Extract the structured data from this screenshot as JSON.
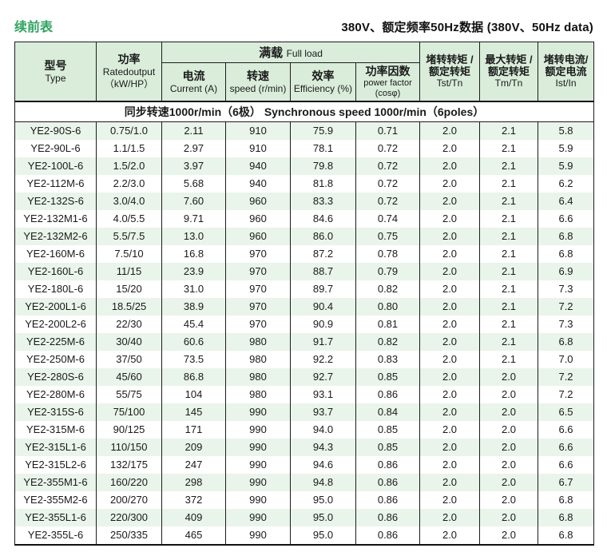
{
  "page": {
    "continued_label": "续前表",
    "title": "380V、额定频率50Hz数据 (380V、50Hz data)"
  },
  "colors": {
    "accent_green_text": "#2ea35f",
    "header_bg": "#d9edda",
    "stripe_bg": "#e9f4ea",
    "border": "#1c1c1c"
  },
  "table": {
    "header": {
      "type_zh": "型号",
      "type_en": "Type",
      "power_zh": "功率",
      "power_en": "Ratedoutput",
      "power_unit": "（kW/HP）",
      "full_load_zh": "满载",
      "full_load_en": "Full load",
      "current_zh": "电流",
      "current_en": "Current (A)",
      "speed_zh": "转速",
      "speed_en": "speed (r/min)",
      "efficiency_zh": "效率",
      "efficiency_en": "Efficiency (%)",
      "power_factor_zh": "功率因数",
      "power_factor_en": "power factor",
      "power_factor_unit": "(cosφ)",
      "tst_zh1": "堵转转矩 /",
      "tst_zh2": "额定转矩",
      "tst_en": "Tst/Tn",
      "tm_zh1": "最大转矩 /",
      "tm_zh2": "额定转矩",
      "tm_en": "Tm/Tn",
      "ist_zh1": "堵转电流/",
      "ist_zh2": "额定电流",
      "ist_en": "Ist/In"
    },
    "group_label": "同步转速1000r/min（6极）   Synchronous speed 1000r/min（6poles）",
    "columns": [
      "model",
      "power",
      "current",
      "speed",
      "efficiency",
      "power-factor",
      "tst-tn",
      "tm-tn",
      "ist-in"
    ],
    "rows": [
      [
        "YE2-90S-6",
        "0.75/1.0",
        "2.11",
        "910",
        "75.9",
        "0.71",
        "2.0",
        "2.1",
        "5.8"
      ],
      [
        "YE2-90L-6",
        "1.1/1.5",
        "2.97",
        "910",
        "78.1",
        "0.72",
        "2.0",
        "2.1",
        "5.9"
      ],
      [
        "YE2-100L-6",
        "1.5/2.0",
        "3.97",
        "940",
        "79.8",
        "0.72",
        "2.0",
        "2.1",
        "5.9"
      ],
      [
        "YE2-112M-6",
        "2.2/3.0",
        "5.68",
        "940",
        "81.8",
        "0.72",
        "2.0",
        "2.1",
        "6.2"
      ],
      [
        "YE2-132S-6",
        "3.0/4.0",
        "7.60",
        "960",
        "83.3",
        "0.72",
        "2.0",
        "2.1",
        "6.4"
      ],
      [
        "YE2-132M1-6",
        "4.0/5.5",
        "9.71",
        "960",
        "84.6",
        "0.74",
        "2.0",
        "2.1",
        "6.6"
      ],
      [
        "YE2-132M2-6",
        "5.5/7.5",
        "13.0",
        "960",
        "86.0",
        "0.75",
        "2.0",
        "2.1",
        "6.8"
      ],
      [
        "YE2-160M-6",
        "7.5/10",
        "16.8",
        "970",
        "87.2",
        "0.78",
        "2.0",
        "2.1",
        "6.8"
      ],
      [
        "YE2-160L-6",
        "11/15",
        "23.9",
        "970",
        "88.7",
        "0.79",
        "2.0",
        "2.1",
        "6.9"
      ],
      [
        "YE2-180L-6",
        "15/20",
        "31.0",
        "970",
        "89.7",
        "0.82",
        "2.0",
        "2.1",
        "7.3"
      ],
      [
        "YE2-200L1-6",
        "18.5/25",
        "38.9",
        "970",
        "90.4",
        "0.80",
        "2.0",
        "2.1",
        "7.2"
      ],
      [
        "YE2-200L2-6",
        "22/30",
        "45.4",
        "970",
        "90.9",
        "0.81",
        "2.0",
        "2.1",
        "7.3"
      ],
      [
        "YE2-225M-6",
        "30/40",
        "60.6",
        "980",
        "91.7",
        "0.82",
        "2.0",
        "2.1",
        "6.8"
      ],
      [
        "YE2-250M-6",
        "37/50",
        "73.5",
        "980",
        "92.2",
        "0.83",
        "2.0",
        "2.1",
        "7.0"
      ],
      [
        "YE2-280S-6",
        "45/60",
        "86.8",
        "980",
        "92.7",
        "0.85",
        "2.0",
        "2.0",
        "7.2"
      ],
      [
        "YE2-280M-6",
        "55/75",
        "104",
        "980",
        "93.1",
        "0.86",
        "2.0",
        "2.0",
        "7.2"
      ],
      [
        "YE2-315S-6",
        "75/100",
        "145",
        "990",
        "93.7",
        "0.84",
        "2.0",
        "2.0",
        "6.5"
      ],
      [
        "YE2-315M-6",
        "90/125",
        "171",
        "990",
        "94.0",
        "0.85",
        "2.0",
        "2.0",
        "6.6"
      ],
      [
        "YE2-315L1-6",
        "110/150",
        "209",
        "990",
        "94.3",
        "0.85",
        "2.0",
        "2.0",
        "6.6"
      ],
      [
        "YE2-315L2-6",
        "132/175",
        "247",
        "990",
        "94.6",
        "0.86",
        "2.0",
        "2.0",
        "6.6"
      ],
      [
        "YE2-355M1-6",
        "160/220",
        "298",
        "990",
        "94.8",
        "0.86",
        "2.0",
        "2.0",
        "6.7"
      ],
      [
        "YE2-355M2-6",
        "200/270",
        "372",
        "990",
        "95.0",
        "0.86",
        "2.0",
        "2.0",
        "6.8"
      ],
      [
        "YE2-355L1-6",
        "220/300",
        "409",
        "990",
        "95.0",
        "0.86",
        "2.0",
        "2.0",
        "6.8"
      ],
      [
        "YE2-355L-6",
        "250/335",
        "465",
        "990",
        "95.0",
        "0.86",
        "2.0",
        "2.0",
        "6.8"
      ]
    ]
  }
}
